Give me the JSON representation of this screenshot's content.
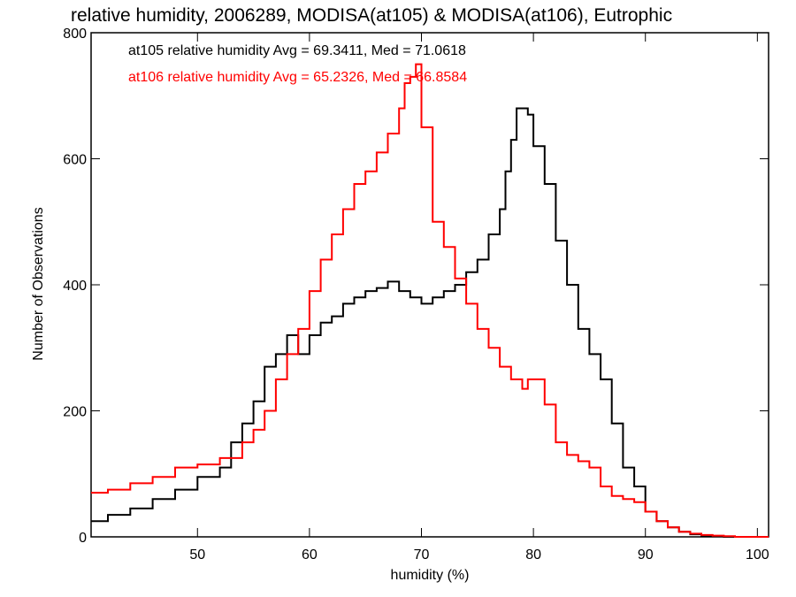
{
  "chart_data": {
    "type": "line",
    "title": "relative humidity, 2006289, MODISA(at105) & MODISA(at106), Eutrophic",
    "xlabel": "humidity (%)",
    "ylabel": "Number of Observations",
    "xlim": [
      40.5,
      101
    ],
    "ylim": [
      0,
      800
    ],
    "xticks": [
      50,
      60,
      70,
      80,
      90,
      100
    ],
    "yticks": [
      0,
      200,
      400,
      600,
      800
    ],
    "step": true,
    "series": [
      {
        "name": "at105 relative humidity Avg = 69.3411, Med = 71.0618",
        "color": "#000000",
        "points": [
          [
            40.5,
            25
          ],
          [
            42,
            35
          ],
          [
            44,
            45
          ],
          [
            46,
            60
          ],
          [
            48,
            75
          ],
          [
            50,
            95
          ],
          [
            52,
            110
          ],
          [
            53,
            150
          ],
          [
            54,
            180
          ],
          [
            55,
            215
          ],
          [
            56,
            270
          ],
          [
            57,
            290
          ],
          [
            58,
            320
          ],
          [
            59,
            290
          ],
          [
            60,
            320
          ],
          [
            61,
            340
          ],
          [
            62,
            350
          ],
          [
            63,
            370
          ],
          [
            64,
            380
          ],
          [
            65,
            390
          ],
          [
            66,
            395
          ],
          [
            67,
            405
          ],
          [
            68,
            390
          ],
          [
            69,
            380
          ],
          [
            70,
            370
          ],
          [
            71,
            380
          ],
          [
            72,
            390
          ],
          [
            73,
            400
          ],
          [
            74,
            420
          ],
          [
            75,
            440
          ],
          [
            76,
            480
          ],
          [
            77,
            520
          ],
          [
            77.5,
            580
          ],
          [
            78,
            630
          ],
          [
            78.5,
            680
          ],
          [
            79,
            680
          ],
          [
            79.5,
            670
          ],
          [
            80,
            620
          ],
          [
            81,
            560
          ],
          [
            82,
            470
          ],
          [
            83,
            400
          ],
          [
            84,
            330
          ],
          [
            85,
            290
          ],
          [
            86,
            250
          ],
          [
            87,
            180
          ],
          [
            88,
            110
          ],
          [
            89,
            80
          ],
          [
            90,
            40
          ],
          [
            91,
            25
          ],
          [
            92,
            15
          ],
          [
            93,
            8
          ],
          [
            94,
            4
          ],
          [
            95,
            2
          ],
          [
            96,
            1
          ],
          [
            97,
            0
          ],
          [
            101,
            0
          ]
        ]
      },
      {
        "name": "at106 relative humidity Avg = 65.2326, Med = 66.8584",
        "color": "#ff0000",
        "points": [
          [
            40.5,
            70
          ],
          [
            42,
            75
          ],
          [
            44,
            85
          ],
          [
            46,
            95
          ],
          [
            48,
            110
          ],
          [
            50,
            115
          ],
          [
            52,
            125
          ],
          [
            54,
            150
          ],
          [
            55,
            170
          ],
          [
            56,
            200
          ],
          [
            57,
            250
          ],
          [
            58,
            290
          ],
          [
            59,
            330
          ],
          [
            60,
            390
          ],
          [
            61,
            440
          ],
          [
            62,
            480
          ],
          [
            63,
            520
          ],
          [
            64,
            560
          ],
          [
            65,
            580
          ],
          [
            66,
            610
          ],
          [
            67,
            640
          ],
          [
            68,
            680
          ],
          [
            68.5,
            720
          ],
          [
            69,
            730
          ],
          [
            69.5,
            750
          ],
          [
            70,
            650
          ],
          [
            71,
            500
          ],
          [
            72,
            460
          ],
          [
            73,
            410
          ],
          [
            74,
            370
          ],
          [
            75,
            330
          ],
          [
            76,
            300
          ],
          [
            77,
            270
          ],
          [
            78,
            250
          ],
          [
            79,
            235
          ],
          [
            79.5,
            250
          ],
          [
            80,
            250
          ],
          [
            81,
            210
          ],
          [
            82,
            150
          ],
          [
            83,
            130
          ],
          [
            84,
            120
          ],
          [
            85,
            110
          ],
          [
            86,
            80
          ],
          [
            87,
            65
          ],
          [
            88,
            60
          ],
          [
            89,
            55
          ],
          [
            90,
            40
          ],
          [
            91,
            25
          ],
          [
            92,
            15
          ],
          [
            93,
            8
          ],
          [
            94,
            5
          ],
          [
            95,
            3
          ],
          [
            96,
            2
          ],
          [
            97,
            1
          ],
          [
            98,
            0
          ],
          [
            101,
            0
          ]
        ]
      }
    ]
  }
}
